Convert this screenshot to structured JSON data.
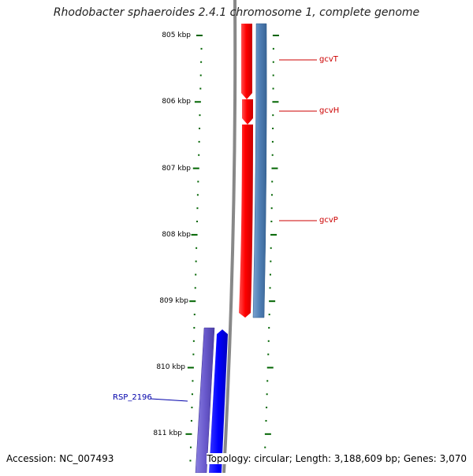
{
  "title": "Rhodobacter sphaeroides 2.4.1 chromosome 1, complete genome",
  "footer": {
    "accession": "Accession: NC_007493",
    "summary": "Topology: circular; Length: 3,188,609 bp; Genes: 3,070"
  },
  "ticks": [
    "805 kbp",
    "806 kbp",
    "807 kbp",
    "808 kbp",
    "809 kbp",
    "810 kbp",
    "811 kbp"
  ],
  "genes": [
    {
      "name": "gcvT",
      "color": "#cc0000"
    },
    {
      "name": "gcvH",
      "color": "#cc0000"
    },
    {
      "name": "gcvP",
      "color": "#cc0000"
    },
    {
      "name": "RSP_2196",
      "color": "#0000aa"
    }
  ],
  "colors": {
    "forward_gene": "#ff0000",
    "forward_cds": "#4f7fb5",
    "reverse_gene": "#0000ff",
    "reverse_cds": "#6a5acd",
    "backbone": "#888888",
    "tick": "#006400"
  }
}
